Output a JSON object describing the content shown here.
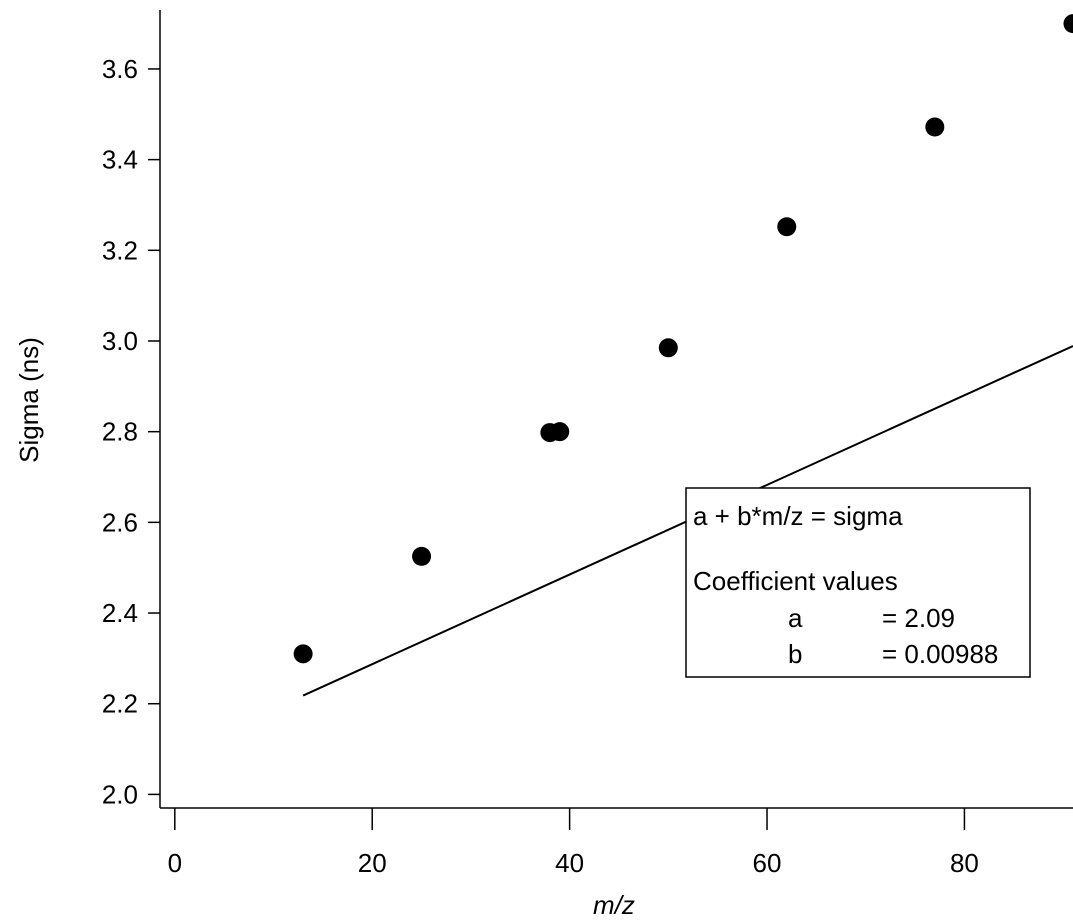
{
  "chart_data": {
    "type": "scatter",
    "xlabel": "m/z",
    "ylabel": "Sigma (ns)",
    "xlim": [
      -1.5,
      91
    ],
    "ylim": [
      1.97,
      3.73
    ],
    "xticks": [
      0,
      20,
      40,
      60,
      80
    ],
    "xtick_labels": [
      "0",
      "20",
      "40",
      "60",
      "80"
    ],
    "yticks": [
      2.0,
      2.2,
      2.4,
      2.6,
      2.8,
      3.0,
      3.2,
      3.4,
      3.6
    ],
    "ytick_labels": [
      "2.0",
      "2.2",
      "2.4",
      "2.6",
      "2.8",
      "3.0",
      "3.2",
      "3.4",
      "3.6"
    ],
    "grid": false,
    "series": [
      {
        "type": "scatter",
        "x": [
          13,
          25,
          38,
          39,
          50,
          62,
          77,
          91
        ],
        "y": [
          2.31,
          2.525,
          2.798,
          2.8,
          2.985,
          3.252,
          3.472,
          3.7
        ],
        "color": "#000000"
      },
      {
        "type": "line",
        "x": [
          13,
          91
        ],
        "y": [
          2.218,
          2.989
        ],
        "color": "#000000"
      }
    ],
    "fit": {
      "a": 2.09,
      "b": 0.00988
    },
    "annotation": {
      "equation": "a + b*m/z = sigma",
      "header": "Coefficient values",
      "rows": [
        {
          "name": "a",
          "value": "= 2.09"
        },
        {
          "name": "b",
          "value": "= 0.00988"
        }
      ],
      "position": "lower-right"
    }
  }
}
